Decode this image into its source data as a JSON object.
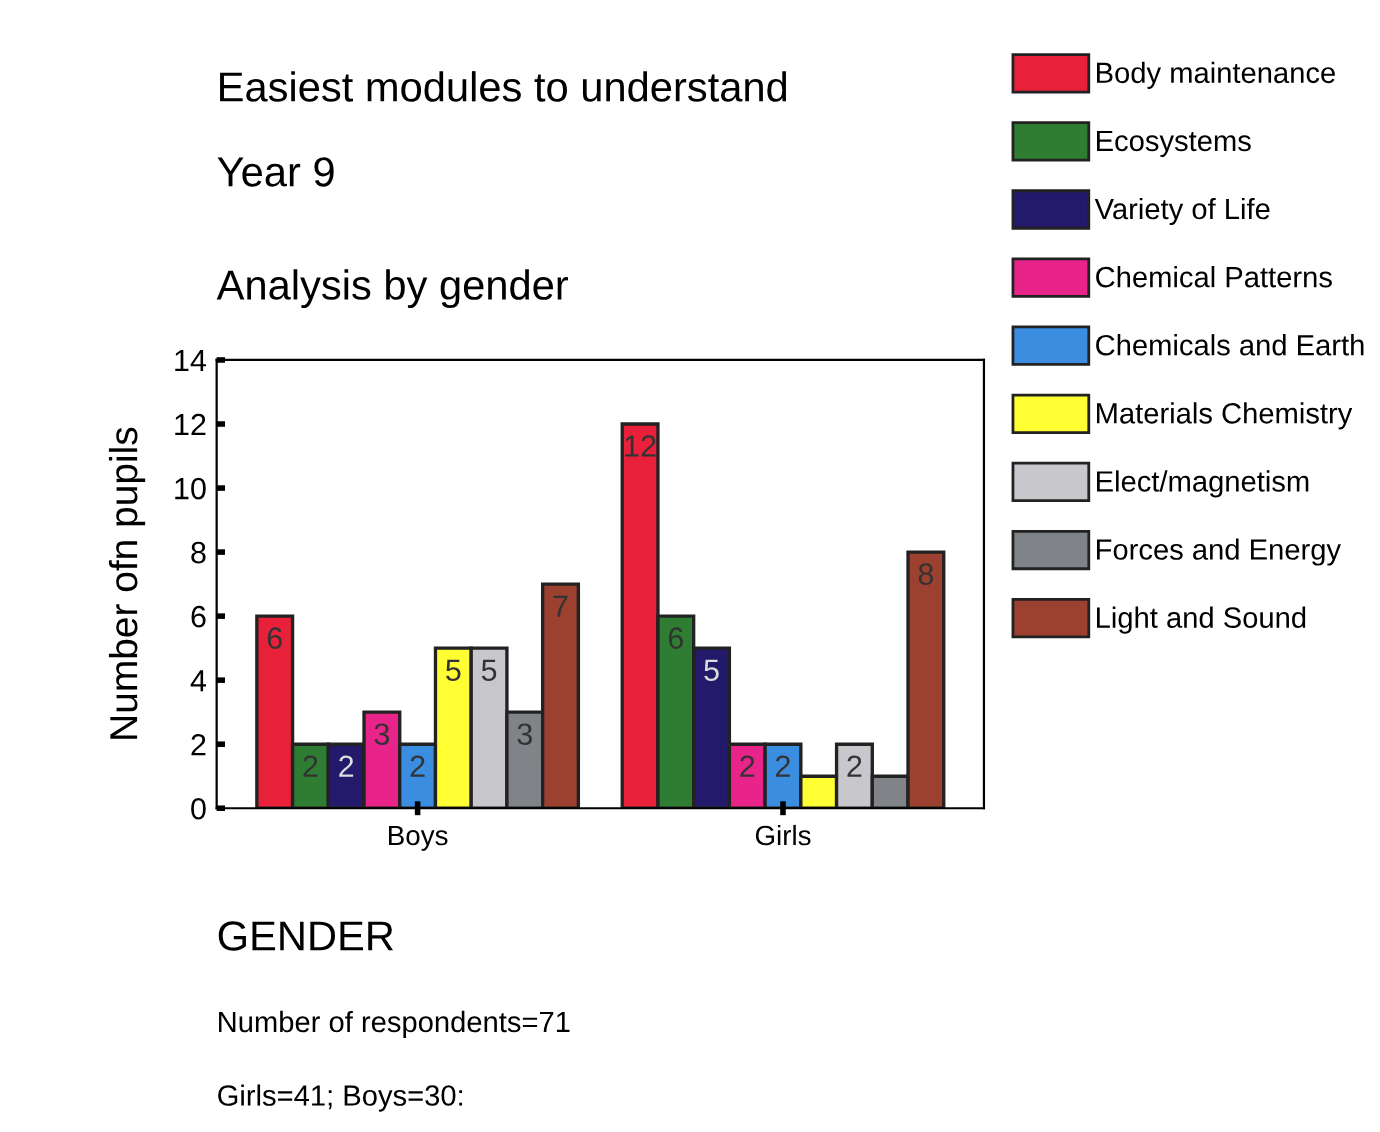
{
  "chart_data": {
    "type": "bar",
    "title": "Easiest modules to understand",
    "subtitle": "Year 9",
    "ylabel": "Number ofn pupils",
    "categories": [
      "Boys",
      "Girls"
    ],
    "ylim": [
      0,
      14
    ],
    "yticks": [
      0,
      2,
      4,
      6,
      8,
      10,
      12,
      14
    ],
    "grid": false,
    "legend": "right",
    "series": [
      {
        "name": "Body maintenance",
        "color": "#e8203a",
        "values": [
          6,
          12
        ],
        "value_labels": [
          "6",
          "12"
        ]
      },
      {
        "name": "Ecosystems",
        "color": "#2e7d32",
        "values": [
          2,
          6
        ],
        "value_labels": [
          "2",
          "6"
        ]
      },
      {
        "name": "Variety of Life",
        "color": "#231a6b",
        "values": [
          2,
          5
        ],
        "value_labels": [
          "2",
          "5"
        ]
      },
      {
        "name": "Chemical Patterns",
        "color": "#e8238a",
        "values": [
          3,
          2
        ],
        "value_labels": [
          "3",
          "2"
        ]
      },
      {
        "name": "Chemicals and Earth",
        "color": "#3b8de0",
        "values": [
          2,
          2
        ],
        "value_labels": [
          "2",
          "2"
        ]
      },
      {
        "name": "Materials Chemistry",
        "color": "#ffff33",
        "values": [
          5,
          1
        ],
        "value_labels": [
          "5",
          null
        ]
      },
      {
        "name": "Elect/magnetism",
        "color": "#c8c8cc",
        "values": [
          5,
          2
        ],
        "value_labels": [
          "5",
          "2"
        ]
      },
      {
        "name": "Forces and Energy",
        "color": "#808488",
        "values": [
          3,
          1
        ],
        "value_labels": [
          "3",
          null
        ]
      },
      {
        "name": "Light and Sound",
        "color": "#9c4030",
        "values": [
          7,
          8
        ],
        "value_labels": [
          "7",
          "8"
        ]
      }
    ],
    "annotations": [
      "Analysis by gender",
      "GENDER",
      "Number of respondents=71",
      "Girls=41; Boys=30:"
    ]
  }
}
